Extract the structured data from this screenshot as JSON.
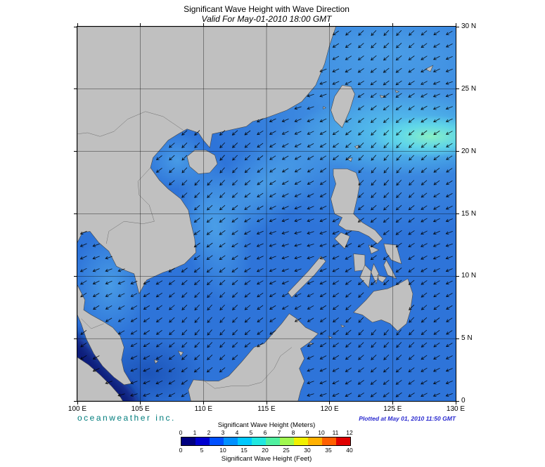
{
  "title": "Significant Wave Height with Wave Direction",
  "subtitle": "Valid For May-01-2010 18:00 GMT",
  "map": {
    "lon_ticks": [
      "100 E",
      "105 E",
      "110 E",
      "115 E",
      "120 E",
      "125 E",
      "130 E"
    ],
    "lat_ticks": [
      "30 N",
      "25 N",
      "20 N",
      "15 N",
      "10 N",
      "5 N",
      "0"
    ]
  },
  "footer": {
    "brand": "oceanweather inc.",
    "plotted": "Plotted at May 01, 2010 11:50 GMT"
  },
  "legend": {
    "meters_label": "Significant Wave Height (Meters)",
    "feet_label": "Significant Wave Height (Feet)",
    "meters_ticks": [
      "0",
      "1",
      "2",
      "3",
      "4",
      "5",
      "6",
      "7",
      "8",
      "9",
      "10",
      "11",
      "12"
    ],
    "feet_ticks": [
      "0",
      "5",
      "10",
      "15",
      "20",
      "25",
      "30",
      "35",
      "40"
    ],
    "colors": [
      "#000080",
      "#0000d0",
      "#0050ff",
      "#0090ff",
      "#00c8ff",
      "#20e8e0",
      "#50f0a0",
      "#a0f850",
      "#f0f000",
      "#ffb000",
      "#ff6000",
      "#e00000"
    ]
  },
  "colors": {
    "ocean_base": "#2e74d9",
    "land": "#c0c0c0"
  }
}
